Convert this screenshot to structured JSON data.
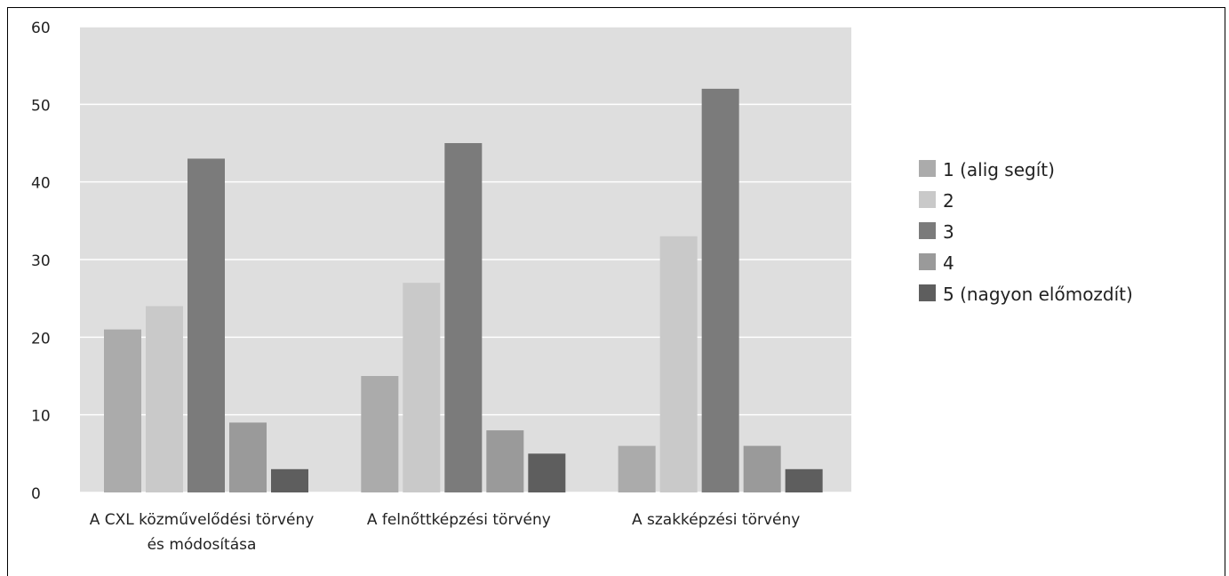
{
  "chart_data": {
    "type": "bar",
    "title": "",
    "xlabel": "",
    "ylabel": "",
    "ylim": [
      0,
      60
    ],
    "yticks": [
      0,
      10,
      20,
      30,
      40,
      50,
      60
    ],
    "grid": true,
    "legend_position": "right",
    "categories": [
      [
        "A CXL közművelődési törvény",
        "és módosítása"
      ],
      [
        "A felnőttképzési törvény"
      ],
      [
        "A szakképzési törvény"
      ]
    ],
    "series": [
      {
        "name": "1 (alig segít)",
        "color": "#ababab",
        "values": [
          21,
          15,
          6
        ]
      },
      {
        "name": "2",
        "color": "#c9c9c9",
        "values": [
          24,
          27,
          33
        ]
      },
      {
        "name": "3",
        "color": "#7b7b7b",
        "values": [
          43,
          45,
          52
        ]
      },
      {
        "name": "4",
        "color": "#9a9a9a",
        "values": [
          9,
          8,
          6
        ]
      },
      {
        "name": "5 (nagyon előmozdít)",
        "color": "#5e5e5e",
        "values": [
          3,
          5,
          3
        ]
      }
    ],
    "plot_background": "#dedede"
  }
}
